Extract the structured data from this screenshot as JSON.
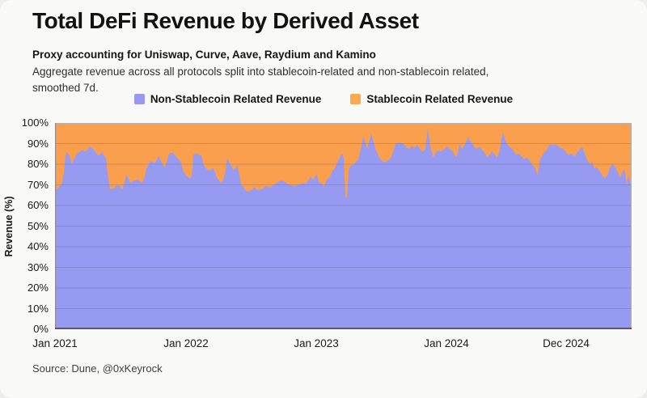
{
  "header": {
    "title": "Total DeFi Revenue by Derived Asset",
    "subtitle_bold": "Proxy accounting for Uniswap, Curve, Aave, Raydium and Kamino",
    "subtitle_line1": "Aggregate revenue across all protocols split into stablecoin-related and non-stablecoin related,",
    "subtitle_line2": "smoothed 7d."
  },
  "legend": [
    {
      "label": "Non-Stablecoin Related Revenue",
      "color": "#9799f2"
    },
    {
      "label": "Stablecoin Related Revenue",
      "color": "#fba94e"
    }
  ],
  "source": "Source: Dune, @0xKeyrock",
  "colors": {
    "non_stablecoin_fill": "#979af1",
    "stablecoin_fill": "#fa9f4e",
    "gridline": "rgba(70,70,110,0.25)",
    "frame": "#b3b3b3",
    "frame_left": "#8d8d8d",
    "axis_bottom": "#5a5a5a",
    "background": "#f9f9f8"
  },
  "chart_data": {
    "type": "area",
    "stacked": true,
    "title": "Total DeFi Revenue by Derived Asset",
    "ylabel": "Revenue (%)",
    "ylim": [
      0,
      100
    ],
    "grid": "horizontal",
    "legend_position": "top-center",
    "y_ticks": [
      "100%",
      "90%",
      "80%",
      "70%",
      "60%",
      "50%",
      "40%",
      "30%",
      "20%",
      "10%",
      "0%"
    ],
    "x_ticks": [
      {
        "label": "Jan 2021",
        "t": 0
      },
      {
        "label": "Jan 2022",
        "t": 12.16
      },
      {
        "label": "Jan 2023",
        "t": 24.24
      },
      {
        "label": "Jan 2024",
        "t": 36.32
      },
      {
        "label": "Dec 2024",
        "t": 47.42
      }
    ],
    "t_unit": "months since Jan 2021",
    "t_range": [
      0,
      53.5
    ],
    "series_note": "Values are Non-Stablecoin Related Revenue share in %; Stablecoin Related Revenue share = 100 - value (stacked to 100%).",
    "non_stablecoin_share": [
      [
        0,
        67
      ],
      [
        0.23,
        68
      ],
      [
        0.45,
        69.5
      ],
      [
        0.6,
        70
      ],
      [
        0.83,
        76
      ],
      [
        0.98,
        85
      ],
      [
        1.13,
        86
      ],
      [
        1.35,
        84
      ],
      [
        1.58,
        80
      ],
      [
        1.8,
        83
      ],
      [
        2.1,
        85.5
      ],
      [
        2.33,
        86
      ],
      [
        2.48,
        87
      ],
      [
        2.7,
        86.5
      ],
      [
        2.85,
        86
      ],
      [
        3.08,
        87.5
      ],
      [
        3.23,
        88.5
      ],
      [
        3.45,
        88
      ],
      [
        3.6,
        87
      ],
      [
        3.83,
        85.5
      ],
      [
        3.98,
        84
      ],
      [
        4.2,
        85
      ],
      [
        4.35,
        86
      ],
      [
        4.58,
        84
      ],
      [
        4.73,
        83
      ],
      [
        4.88,
        76
      ],
      [
        5.1,
        68
      ],
      [
        5.33,
        68
      ],
      [
        5.48,
        68.5
      ],
      [
        5.7,
        69.5
      ],
      [
        5.85,
        70
      ],
      [
        6.08,
        69
      ],
      [
        6.23,
        68
      ],
      [
        6.45,
        71
      ],
      [
        6.6,
        75
      ],
      [
        6.83,
        73
      ],
      [
        6.98,
        71
      ],
      [
        7.2,
        71.5
      ],
      [
        7.35,
        72
      ],
      [
        7.58,
        72.5
      ],
      [
        7.73,
        72.5
      ],
      [
        7.95,
        71.5
      ],
      [
        8.1,
        71
      ],
      [
        8.33,
        74
      ],
      [
        8.48,
        78
      ],
      [
        8.7,
        80
      ],
      [
        8.85,
        81.6
      ],
      [
        9.08,
        81
      ],
      [
        9.23,
        80.3
      ],
      [
        9.45,
        82
      ],
      [
        9.6,
        84
      ],
      [
        9.83,
        81.6
      ],
      [
        9.98,
        80
      ],
      [
        10.2,
        78.3
      ],
      [
        10.35,
        81
      ],
      [
        10.58,
        85
      ],
      [
        10.73,
        85.5
      ],
      [
        10.95,
        85.7
      ],
      [
        11.1,
        84.5
      ],
      [
        11.33,
        83
      ],
      [
        11.63,
        81.6
      ],
      [
        11.85,
        77.6
      ],
      [
        12.08,
        75
      ],
      [
        12.23,
        74.3
      ],
      [
        12.45,
        73.5
      ],
      [
        12.6,
        73
      ],
      [
        12.76,
        78
      ],
      [
        12.83,
        84.6
      ],
      [
        13.05,
        85
      ],
      [
        13.2,
        85.3
      ],
      [
        13.43,
        84.5
      ],
      [
        13.58,
        84
      ],
      [
        13.73,
        81
      ],
      [
        13.88,
        78.9
      ],
      [
        14.1,
        77.5
      ],
      [
        14.26,
        76.9
      ],
      [
        14.48,
        77.5
      ],
      [
        14.63,
        78.3
      ],
      [
        14.86,
        76
      ],
      [
        15.01,
        73.6
      ],
      [
        15.23,
        72
      ],
      [
        15.38,
        71
      ],
      [
        15.61,
        72.3
      ],
      [
        15.83,
        77
      ],
      [
        15.98,
        83.3
      ],
      [
        16.21,
        80.3
      ],
      [
        16.43,
        78.5
      ],
      [
        16.58,
        77
      ],
      [
        16.73,
        78
      ],
      [
        16.88,
        79.6
      ],
      [
        17.11,
        75
      ],
      [
        17.26,
        70.3
      ],
      [
        17.48,
        69
      ],
      [
        17.71,
        67
      ],
      [
        17.86,
        66.8
      ],
      [
        18.08,
        67
      ],
      [
        18.23,
        67.5
      ],
      [
        18.46,
        68.8
      ],
      [
        18.68,
        68
      ],
      [
        18.83,
        67.5
      ],
      [
        19.06,
        67.8
      ],
      [
        19.21,
        68
      ],
      [
        19.43,
        69
      ],
      [
        19.58,
        69.4
      ],
      [
        19.81,
        69
      ],
      [
        19.96,
        68.8
      ],
      [
        20.18,
        69.5
      ],
      [
        20.33,
        70
      ],
      [
        20.56,
        71
      ],
      [
        20.71,
        71.5
      ],
      [
        20.93,
        71.8
      ],
      [
        21.08,
        72
      ],
      [
        21.31,
        71.5
      ],
      [
        21.46,
        70.8
      ],
      [
        21.68,
        70.3
      ],
      [
        21.83,
        70
      ],
      [
        22.06,
        69.7
      ],
      [
        22.21,
        69.4
      ],
      [
        22.43,
        69.7
      ],
      [
        22.58,
        70
      ],
      [
        22.81,
        70.4
      ],
      [
        22.96,
        70.8
      ],
      [
        23.18,
        70.8
      ],
      [
        23.33,
        70.8
      ],
      [
        23.56,
        72.5
      ],
      [
        23.71,
        74
      ],
      [
        23.86,
        73
      ],
      [
        24.01,
        72.7
      ],
      [
        24.24,
        75.5
      ],
      [
        24.46,
        71.5
      ],
      [
        24.61,
        71
      ],
      [
        24.76,
        70.8
      ],
      [
        24.99,
        68.8
      ],
      [
        25.14,
        72
      ],
      [
        25.36,
        73
      ],
      [
        25.51,
        74
      ],
      [
        25.74,
        76.8
      ],
      [
        25.96,
        78
      ],
      [
        26.11,
        79.8
      ],
      [
        26.26,
        81.6
      ],
      [
        26.49,
        84.3
      ],
      [
        26.64,
        85
      ],
      [
        26.79,
        83
      ],
      [
        26.94,
        64
      ],
      [
        27.09,
        63.5
      ],
      [
        27.24,
        77
      ],
      [
        27.39,
        78.9
      ],
      [
        27.61,
        80
      ],
      [
        27.76,
        80.3
      ],
      [
        27.99,
        81.5
      ],
      [
        28.14,
        82.3
      ],
      [
        28.36,
        87
      ],
      [
        28.59,
        93.4
      ],
      [
        28.81,
        90
      ],
      [
        28.96,
        87.4
      ],
      [
        29.19,
        92
      ],
      [
        29.34,
        94.7
      ],
      [
        29.56,
        91
      ],
      [
        29.71,
        87.4
      ],
      [
        29.94,
        85
      ],
      [
        30.09,
        83.3
      ],
      [
        30.31,
        82
      ],
      [
        30.46,
        81
      ],
      [
        30.69,
        81.3
      ],
      [
        30.84,
        81.6
      ],
      [
        31.06,
        82.5
      ],
      [
        31.21,
        83.6
      ],
      [
        31.44,
        87
      ],
      [
        31.59,
        90
      ],
      [
        31.81,
        90.3
      ],
      [
        31.96,
        90.5
      ],
      [
        32.19,
        90.2
      ],
      [
        32.34,
        90
      ],
      [
        32.64,
        88
      ],
      [
        32.86,
        87.4
      ],
      [
        33.09,
        88.7
      ],
      [
        33.39,
        88
      ],
      [
        33.61,
        89.4
      ],
      [
        33.84,
        87.4
      ],
      [
        34.14,
        86
      ],
      [
        34.36,
        87.4
      ],
      [
        34.59,
        97.5
      ],
      [
        34.81,
        88.7
      ],
      [
        35.11,
        83.3
      ],
      [
        35.34,
        86
      ],
      [
        35.64,
        86.7
      ],
      [
        35.79,
        86
      ],
      [
        36.01,
        87
      ],
      [
        36.24,
        88
      ],
      [
        36.39,
        88.7
      ],
      [
        36.61,
        87.4
      ],
      [
        36.84,
        86.5
      ],
      [
        36.99,
        85.4
      ],
      [
        37.21,
        83.3
      ],
      [
        37.36,
        85
      ],
      [
        37.51,
        90
      ],
      [
        37.74,
        87.4
      ],
      [
        37.89,
        88.5
      ],
      [
        38.11,
        90.5
      ],
      [
        38.34,
        93.3
      ],
      [
        38.49,
        91.5
      ],
      [
        38.64,
        90.5
      ],
      [
        38.86,
        88.7
      ],
      [
        39.09,
        87.4
      ],
      [
        39.24,
        88
      ],
      [
        39.39,
        88.5
      ],
      [
        39.69,
        86.5
      ],
      [
        39.91,
        85.2
      ],
      [
        40.14,
        83.2
      ],
      [
        40.44,
        85.2
      ],
      [
        40.51,
        86.5
      ],
      [
        40.81,
        84.5
      ],
      [
        41.04,
        83.2
      ],
      [
        41.26,
        86.5
      ],
      [
        41.41,
        92
      ],
      [
        41.56,
        95.5
      ],
      [
        41.79,
        91.2
      ],
      [
        42.01,
        89.2
      ],
      [
        42.31,
        87.9
      ],
      [
        42.54,
        86.5
      ],
      [
        42.76,
        84.5
      ],
      [
        43.06,
        85.2
      ],
      [
        43.29,
        83.8
      ],
      [
        43.51,
        82.5
      ],
      [
        43.81,
        83.2
      ],
      [
        44.04,
        81.8
      ],
      [
        44.26,
        79.9
      ],
      [
        44.56,
        77.9
      ],
      [
        44.71,
        75.5
      ],
      [
        44.79,
        74.5
      ],
      [
        45.01,
        82.5
      ],
      [
        45.31,
        85.2
      ],
      [
        45.54,
        86.5
      ],
      [
        45.76,
        87.9
      ],
      [
        45.91,
        89.8
      ],
      [
        46.14,
        89.2
      ],
      [
        46.44,
        89.8
      ],
      [
        46.66,
        88.5
      ],
      [
        46.89,
        87.9
      ],
      [
        47.19,
        87.2
      ],
      [
        47.41,
        85.8
      ],
      [
        47.64,
        84.5
      ],
      [
        47.94,
        85.2
      ],
      [
        48.16,
        83.8
      ],
      [
        48.39,
        85.2
      ],
      [
        48.69,
        87.2
      ],
      [
        48.91,
        88.5
      ],
      [
        49.14,
        85.2
      ],
      [
        49.44,
        81.2
      ],
      [
        49.66,
        79.9
      ],
      [
        49.81,
        81.2
      ],
      [
        50.04,
        77.9
      ],
      [
        50.26,
        78.5
      ],
      [
        50.56,
        76.5
      ],
      [
        50.79,
        74.5
      ],
      [
        51.01,
        73.2
      ],
      [
        51.31,
        75.2
      ],
      [
        51.54,
        79.2
      ],
      [
        51.76,
        79.9
      ],
      [
        52.06,
        77.9
      ],
      [
        52.29,
        75.2
      ],
      [
        52.44,
        73.2
      ],
      [
        52.66,
        76.5
      ],
      [
        52.81,
        78
      ],
      [
        53.04,
        70.5
      ],
      [
        53.19,
        74.5
      ],
      [
        53.34,
        71.8
      ],
      [
        53.5,
        67
      ]
    ]
  }
}
